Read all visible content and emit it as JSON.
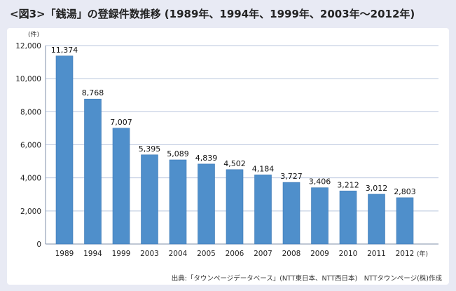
{
  "title": "<図3>「銭湯」の登録件数推移 (1989年、1994年、1999年、2003年〜2012年)",
  "source": "出典:「タウンページデータベース」(NTT東日本、NTT西日本)　NTTタウンページ(株)作成",
  "colors": {
    "bar": "#4f8fcb",
    "bar_edge": "#3f7bb6",
    "grid": "#b9c6de",
    "axis": "#7f8fa8",
    "panel": "#e8eaf4"
  },
  "chart_data": {
    "type": "bar",
    "title": "<図3>「銭湯」の登録件数推移 (1989年、1994年、1999年、2003年〜2012年)",
    "y_unit": "(件)",
    "x_unit": "(年)",
    "ylim": [
      0,
      12000
    ],
    "yticks": [
      0,
      2000,
      4000,
      6000,
      8000,
      10000,
      12000
    ],
    "ytick_labels": [
      "0",
      "2,000",
      "4,000",
      "6,000",
      "8,000",
      "10,000",
      "12,000"
    ],
    "grid": true,
    "categories": [
      "1989",
      "1994",
      "1999",
      "2003",
      "2004",
      "2005",
      "2006",
      "2007",
      "2008",
      "2009",
      "2010",
      "2011",
      "2012"
    ],
    "values": [
      11374,
      8768,
      7007,
      5395,
      5089,
      4839,
      4502,
      4184,
      3727,
      3406,
      3212,
      3012,
      2803
    ],
    "value_labels": [
      "11,374",
      "8,768",
      "7,007",
      "5,395",
      "5,089",
      "4,839",
      "4,502",
      "4,184",
      "3,727",
      "3,406",
      "3,212",
      "3,012",
      "2,803"
    ]
  }
}
